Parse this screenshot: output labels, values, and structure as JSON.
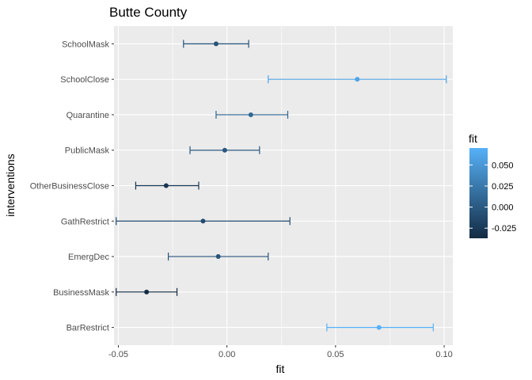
{
  "chart_data": {
    "type": "scatter",
    "title": "Butte County",
    "xlabel": "fit",
    "ylabel": "interventions",
    "xlim": [
      -0.052,
      0.104
    ],
    "x_ticks": [
      -0.05,
      0.0,
      0.05,
      0.1
    ],
    "x_tick_labels": [
      "-0.05",
      "0.00",
      "0.05",
      "0.10"
    ],
    "grid": true,
    "error_bars": true,
    "categories": [
      "SchoolMask",
      "SchoolClose",
      "Quarantine",
      "PublicMask",
      "OtherBusinessClose",
      "GathRestrict",
      "EmergDec",
      "BusinessMask",
      "BarRestrict"
    ],
    "fit": [
      -0.005,
      0.06,
      0.011,
      -0.001,
      -0.028,
      -0.011,
      -0.004,
      -0.037,
      0.07
    ],
    "lower": [
      -0.02,
      0.019,
      -0.005,
      -0.017,
      -0.042,
      -0.051,
      -0.027,
      -0.051,
      0.046
    ],
    "upper": [
      0.01,
      0.101,
      0.028,
      0.015,
      -0.013,
      0.029,
      0.019,
      -0.023,
      0.095
    ],
    "legend": {
      "title": "fit",
      "position": "right",
      "ticks": [
        0.05,
        0.025,
        0.0,
        -0.025
      ],
      "tick_labels": [
        "0.050",
        "0.025",
        "0.000",
        "-0.025"
      ],
      "range": [
        -0.037,
        0.07
      ],
      "low_color": "#132B43",
      "high_color": "#56B1F7"
    },
    "panel_color": "#EBEBEB",
    "grid_color": "#FFFFFF"
  }
}
